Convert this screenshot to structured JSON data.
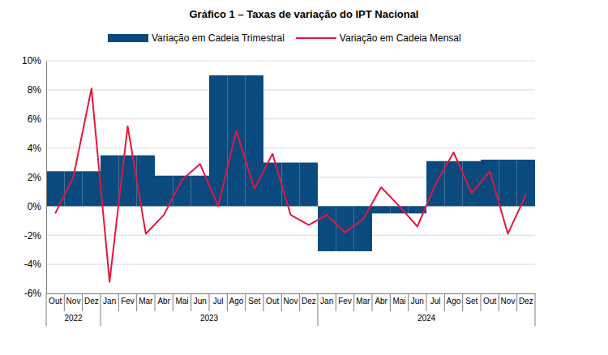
{
  "chart_data": {
    "type": "bar",
    "title": "Gráfico 1 – Taxas de variação do IPT Nacional",
    "categories": [
      "Out",
      "Nov",
      "Dez",
      "Jan",
      "Fev",
      "Mar",
      "Abr",
      "Mai",
      "Jun",
      "Jul",
      "Ago",
      "Set",
      "Out",
      "Nov",
      "Dez",
      "Jan",
      "Fev",
      "Mar",
      "Abr",
      "Mai",
      "Jun",
      "Jul",
      "Ago",
      "Set",
      "Out",
      "Nov",
      "Dez"
    ],
    "groups": [
      "2022",
      "2022",
      "2022",
      "2023",
      "2023",
      "2023",
      "2023",
      "2023",
      "2023",
      "2023",
      "2023",
      "2023",
      "2023",
      "2023",
      "2023",
      "2024",
      "2024",
      "2024",
      "2024",
      "2024",
      "2024",
      "2024",
      "2024",
      "2024",
      "2024",
      "2024",
      "2024"
    ],
    "series": [
      {
        "name": "Variação em Cadeia Trimestral",
        "type": "bar",
        "color": "#0b4a7e",
        "values": [
          2.4,
          2.4,
          2.4,
          3.5,
          3.5,
          3.5,
          2.1,
          2.1,
          2.1,
          9.0,
          9.0,
          9.0,
          3.0,
          3.0,
          3.0,
          -3.1,
          -3.1,
          -3.1,
          -0.5,
          -0.5,
          -0.5,
          3.1,
          3.1,
          3.1,
          3.2,
          3.2,
          3.2
        ]
      },
      {
        "name": "Variação em Cadeia Mensal",
        "type": "line",
        "color": "#e3173e",
        "values": [
          -0.5,
          2.0,
          8.1,
          -5.2,
          5.5,
          -1.9,
          -0.6,
          1.8,
          2.9,
          0.0,
          5.2,
          1.2,
          3.6,
          -0.6,
          -1.3,
          -0.6,
          -1.8,
          -0.9,
          1.3,
          0.0,
          -1.4,
          1.5,
          3.7,
          0.9,
          2.4,
          -1.9,
          0.8
        ]
      }
    ],
    "ylim": [
      -6,
      10
    ],
    "yticks": [
      {
        "value": -6,
        "label": "-6%"
      },
      {
        "value": -4,
        "label": "-4%"
      },
      {
        "value": -2,
        "label": "-2%"
      },
      {
        "value": 0,
        "label": "0%"
      },
      {
        "value": 2,
        "label": "2%"
      },
      {
        "value": 4,
        "label": "4%"
      },
      {
        "value": 6,
        "label": "6%"
      },
      {
        "value": 8,
        "label": "8%"
      },
      {
        "value": 10,
        "label": "10%"
      }
    ],
    "grid": true,
    "legend": "top"
  }
}
